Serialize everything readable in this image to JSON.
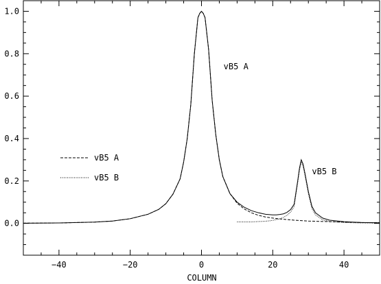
{
  "chart_data": {
    "type": "line",
    "title": "",
    "xlabel": "COLUMN",
    "ylabel": "",
    "xlim": [
      -50,
      50
    ],
    "ylim": [
      -0.15,
      1.05
    ],
    "x_ticks": [
      -40,
      -20,
      0,
      20,
      40
    ],
    "x_tick_labels": [
      "−40",
      "−20",
      "0",
      "20",
      "40"
    ],
    "y_ticks": [
      0.0,
      0.2,
      0.4,
      0.6,
      0.8,
      1.0
    ],
    "y_tick_labels": [
      "0.0",
      "0.2",
      "0.4",
      "0.6",
      "0.8",
      "1.0"
    ],
    "grid": false,
    "legend": {
      "placement": "left",
      "entries": [
        {
          "label": "vB5 A",
          "style": "dashed"
        },
        {
          "label": "vB5 B",
          "style": "dotted"
        }
      ]
    },
    "annotations": [
      {
        "text": "vB5 A",
        "x": 6.2,
        "y": 0.74
      },
      {
        "text": "vB5 B",
        "x": 31,
        "y": 0.245
      }
    ],
    "series": [
      {
        "style": "solid",
        "x": [
          -50,
          -40,
          -30,
          -25,
          -20,
          -15,
          -12,
          -10,
          -8,
          -6,
          -5,
          -4,
          -3,
          -2,
          -1,
          -0.5,
          0,
          0.5,
          1,
          2,
          3,
          4,
          5,
          6,
          8,
          10,
          12,
          14,
          16,
          18,
          20,
          21,
          22,
          23,
          24,
          25,
          26,
          27,
          27.5,
          28,
          28.5,
          29,
          30,
          31,
          32,
          34,
          36,
          40,
          45,
          50
        ],
        "values": [
          0.001,
          0.002,
          0.006,
          0.011,
          0.022,
          0.043,
          0.066,
          0.093,
          0.138,
          0.21,
          0.29,
          0.4,
          0.56,
          0.8,
          0.97,
          0.99,
          1.0,
          0.99,
          0.97,
          0.82,
          0.58,
          0.42,
          0.3,
          0.22,
          0.14,
          0.1,
          0.076,
          0.06,
          0.05,
          0.043,
          0.04,
          0.04,
          0.042,
          0.045,
          0.052,
          0.065,
          0.09,
          0.2,
          0.26,
          0.3,
          0.28,
          0.24,
          0.15,
          0.08,
          0.05,
          0.025,
          0.015,
          0.008,
          0.004,
          0.003
        ]
      },
      {
        "name": "vB5 A",
        "style": "dashed",
        "x": [
          -50,
          -40,
          -30,
          -25,
          -20,
          -15,
          -12,
          -10,
          -8,
          -6,
          -5,
          -4,
          -3,
          -2,
          -1,
          -0.5,
          0,
          0.5,
          1,
          2,
          3,
          4,
          5,
          6,
          8,
          10,
          12,
          14,
          16,
          18,
          20,
          22,
          24,
          26,
          28,
          30,
          32,
          34,
          36,
          40,
          45,
          50
        ],
        "values": [
          0.001,
          0.002,
          0.006,
          0.011,
          0.022,
          0.043,
          0.066,
          0.093,
          0.138,
          0.21,
          0.29,
          0.4,
          0.56,
          0.8,
          0.97,
          0.99,
          1.0,
          0.99,
          0.97,
          0.82,
          0.58,
          0.42,
          0.3,
          0.22,
          0.14,
          0.095,
          0.068,
          0.05,
          0.038,
          0.03,
          0.025,
          0.021,
          0.018,
          0.015,
          0.013,
          0.011,
          0.01,
          0.009,
          0.008,
          0.006,
          0.004,
          0.003
        ]
      },
      {
        "name": "vB5 B",
        "style": "dotted",
        "x": [
          10,
          14,
          18,
          20,
          22,
          23,
          24,
          25,
          26,
          27,
          27.5,
          28,
          28.5,
          29,
          30,
          31,
          32,
          34,
          36,
          40,
          45,
          50
        ],
        "values": [
          0.007,
          0.007,
          0.01,
          0.014,
          0.022,
          0.028,
          0.038,
          0.053,
          0.08,
          0.19,
          0.25,
          0.29,
          0.27,
          0.23,
          0.14,
          0.07,
          0.04,
          0.017,
          0.009,
          0.004,
          0.002,
          0.001
        ]
      }
    ]
  }
}
